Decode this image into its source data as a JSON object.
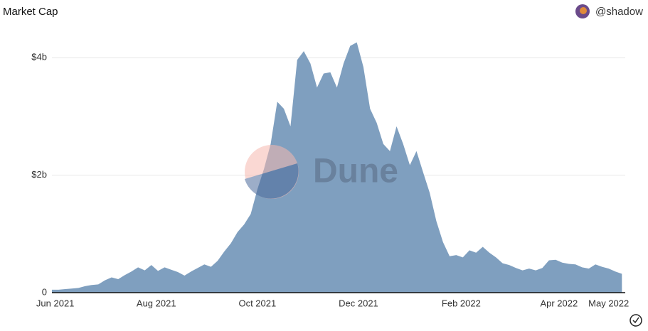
{
  "chart_data": {
    "type": "area",
    "title": "Market Cap",
    "author": "@shadow",
    "watermark": "Dune",
    "color": "#7f9fbf",
    "grid": true,
    "xlim": [
      0,
      86.5
    ],
    "xticks": [
      {
        "value": 0.5,
        "label": "Jun 2021"
      },
      {
        "value": 15.75,
        "label": "Aug 2021"
      },
      {
        "value": 31,
        "label": "Oct 2021"
      },
      {
        "value": 46.25,
        "label": "Dec 2021"
      },
      {
        "value": 61.75,
        "label": "Feb 2022"
      },
      {
        "value": 76.5,
        "label": "Apr 2022"
      },
      {
        "value": 84,
        "label": "May 2022"
      }
    ],
    "ylim": [
      0,
      4.05
    ],
    "yticks": [
      0,
      {
        "value": 2,
        "label": "$2b"
      },
      {
        "value": 4,
        "label": "$4b"
      }
    ],
    "values": [
      0.05,
      0.05,
      0.06,
      0.07,
      0.08,
      0.11,
      0.13,
      0.14,
      0.21,
      0.26,
      0.23,
      0.3,
      0.36,
      0.43,
      0.38,
      0.47,
      0.37,
      0.43,
      0.39,
      0.35,
      0.29,
      0.36,
      0.42,
      0.48,
      0.44,
      0.54,
      0.7,
      0.84,
      1.03,
      1.16,
      1.34,
      1.76,
      2.11,
      2.53,
      3.25,
      3.13,
      2.83,
      3.96,
      4.11,
      3.9,
      3.49,
      3.73,
      3.75,
      3.49,
      3.9,
      4.2,
      4.26,
      3.84,
      3.13,
      2.89,
      2.53,
      2.41,
      2.83,
      2.53,
      2.17,
      2.41,
      2.05,
      1.7,
      1.22,
      0.86,
      0.62,
      0.64,
      0.6,
      0.72,
      0.68,
      0.78,
      0.68,
      0.6,
      0.5,
      0.47,
      0.42,
      0.38,
      0.41,
      0.38,
      0.42,
      0.55,
      0.56,
      0.51,
      0.49,
      0.48,
      0.43,
      0.41,
      0.48,
      0.44,
      0.41,
      0.36,
      0.32
    ]
  }
}
